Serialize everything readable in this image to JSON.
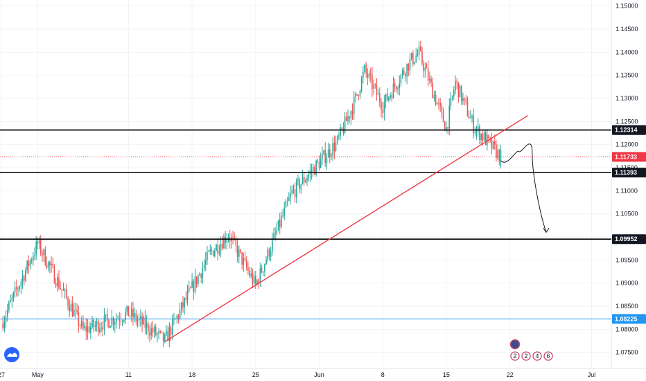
{
  "chart_data": {
    "type": "candlestick",
    "colors": {
      "up": "#26a69a",
      "down": "#ef5350",
      "trendline": "#f23645",
      "level": "#000000",
      "current_price": "#f23645",
      "blue_level": "#2196f3",
      "background": "#ffffff",
      "grid": "#f0f3fa"
    },
    "y_axis": {
      "ylim": [
        1.0715,
        1.1513
      ],
      "ticks": [
        "1.07500",
        "1.08000",
        "1.08500",
        "1.09000",
        "1.09500",
        "1.10000",
        "1.10500",
        "1.11000",
        "1.11500",
        "1.12000",
        "1.12500",
        "1.13000",
        "1.13500",
        "1.14000",
        "1.14500",
        "1.15000"
      ]
    },
    "x_axis": {
      "ticks": [
        "27",
        "May",
        "11",
        "18",
        "25",
        "Jun",
        "8",
        "15",
        "22",
        "Jul"
      ]
    },
    "horizontal_levels": [
      {
        "value": 1.12314,
        "label": "1.12314",
        "kind": "level"
      },
      {
        "value": 1.11393,
        "label": "1.11393",
        "kind": "level"
      },
      {
        "value": 1.09952,
        "label": "1.09952",
        "kind": "level"
      },
      {
        "value": 1.11733,
        "label": "1.11733",
        "kind": "current_price"
      },
      {
        "value": 1.08225,
        "label": "1.08225",
        "kind": "blue_level"
      }
    ],
    "trendline": {
      "start": {
        "date": "May 15",
        "price": 1.0773
      },
      "end": {
        "date": "Jun 24",
        "price": 1.1263
      }
    },
    "projection_path": [
      {
        "date": "Jun 21",
        "price": 1.1165
      },
      {
        "date": "Jun 23",
        "price": 1.1185
      },
      {
        "date": "Jun 24",
        "price": 1.1194
      },
      {
        "date": "Jun 26",
        "price": 1.0995
      }
    ],
    "price_series": [
      {
        "date": "Apr 27",
        "price": 1.0812
      },
      {
        "date": "May 1",
        "price": 1.0985
      },
      {
        "date": "May 6",
        "price": 1.0798
      },
      {
        "date": "May 11",
        "price": 1.0835
      },
      {
        "date": "May 15",
        "price": 1.0775
      },
      {
        "date": "May 20",
        "price": 1.0965
      },
      {
        "date": "May 22",
        "price": 1.1005
      },
      {
        "date": "May 25",
        "price": 1.0895
      },
      {
        "date": "May 29",
        "price": 1.1095
      },
      {
        "date": "Jun 3",
        "price": 1.1205
      },
      {
        "date": "Jun 5",
        "price": 1.1298
      },
      {
        "date": "Jun 6",
        "price": 1.136
      },
      {
        "date": "Jun 8",
        "price": 1.1285
      },
      {
        "date": "Jun 11",
        "price": 1.138
      },
      {
        "date": "Jun 12",
        "price": 1.1398
      },
      {
        "date": "Jun 15",
        "price": 1.1235
      },
      {
        "date": "Jun 16",
        "price": 1.1335
      },
      {
        "date": "Jun 18",
        "price": 1.124
      },
      {
        "date": "Jun 21",
        "price": 1.1173
      }
    ],
    "event_markers": [
      "2",
      "2",
      "4",
      "6"
    ]
  }
}
